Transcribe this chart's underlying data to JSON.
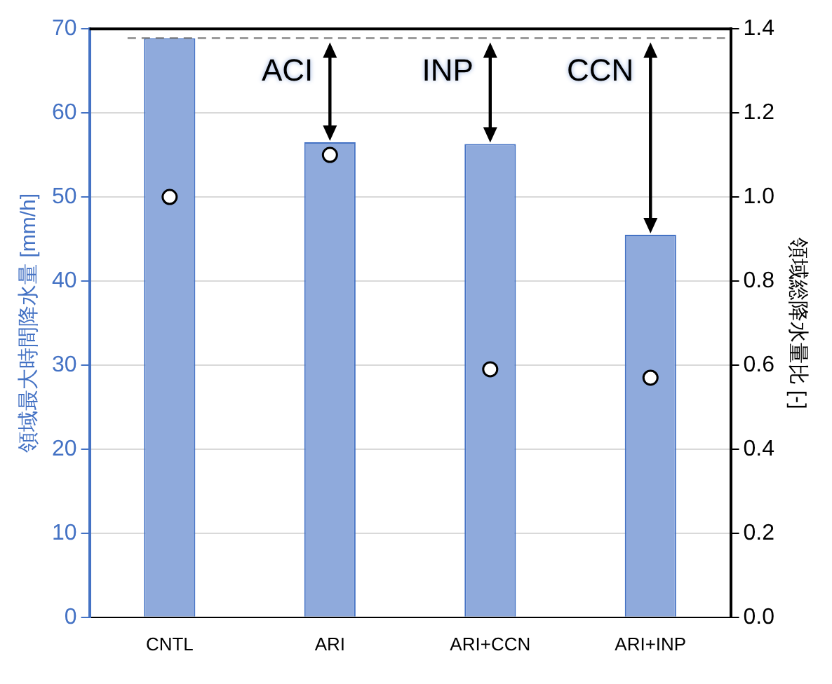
{
  "chart_data": {
    "type": "bar",
    "categories": [
      "CNTL",
      "ARI",
      "ARI+CCN",
      "ARI+INP"
    ],
    "series": [
      {
        "color": "#8faadc",
        "values": [
          68.9,
          56.5,
          56.3,
          45.5
        ]
      },
      {
        "type": "scatter",
        "axis": "y2",
        "color": "#ffffff",
        "x": [
          "CNTL",
          "ARI",
          "ARI+CCN",
          "ARI+INP"
        ],
        "values": [
          1.0,
          1.1,
          0.59,
          0.57
        ]
      }
    ],
    "ylabel": "領域最大時間降水量 [mm/h]",
    "y2label": "領域総降水量比 [-]",
    "ylim": [
      0,
      70
    ],
    "yticks": [
      0,
      10,
      20,
      30,
      40,
      50,
      60,
      70
    ],
    "y2lim": [
      0,
      1.4
    ],
    "y2ticks": [
      {
        "value": 0,
        "label": "0.0"
      },
      {
        "value": 0.2,
        "label": "0.2"
      },
      {
        "value": 0.4,
        "label": "0.4"
      },
      {
        "value": 0.6,
        "label": "0.6"
      },
      {
        "value": 0.8,
        "label": "0.8"
      },
      {
        "value": 1,
        "label": "1.0"
      },
      {
        "value": 1.2,
        "label": "1.2"
      },
      {
        "value": 1.4,
        "label": "1.4"
      }
    ],
    "ref_lines": [
      {
        "axis": "y",
        "value": 68.9,
        "color": "#808080",
        "line_style": "dashed"
      }
    ],
    "annotations": [
      {
        "text": "ACI",
        "x": "ARI",
        "y": 56.5
      },
      {
        "text": "INP",
        "x": "ARI+CCN",
        "y": 56.3
      },
      {
        "text": "CCN",
        "x": "ARI+INP",
        "y": 45.5
      }
    ],
    "grid": "y",
    "legend": false,
    "marker": "circle"
  }
}
